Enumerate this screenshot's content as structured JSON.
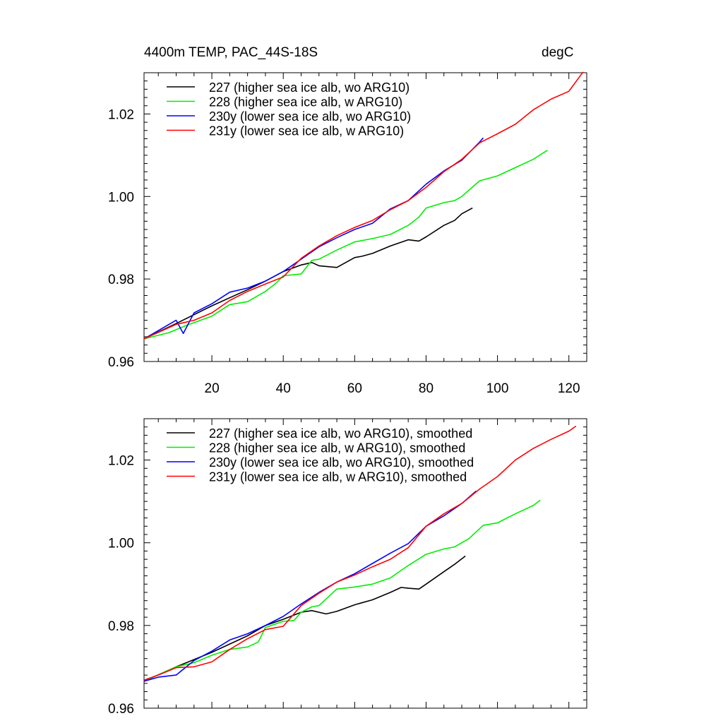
{
  "title_left": "4400m TEMP, PAC_44S-18S",
  "title_right": "degC",
  "chart_data": [
    {
      "type": "line",
      "title": "4400m TEMP, PAC_44S-18S",
      "units": "degC",
      "xlim": [
        1,
        125
      ],
      "ylim": [
        0.96,
        1.03
      ],
      "xticks": [
        20,
        40,
        60,
        80,
        100,
        120
      ],
      "xtick_labels": [
        "20",
        "40",
        "60",
        "80",
        "100",
        "120"
      ],
      "yticks": [
        0.96,
        0.98,
        1.0,
        1.02
      ],
      "ytick_labels": [
        "0.96",
        "0.98",
        "1.00",
        "1.02"
      ],
      "legend_position": "top-left",
      "series": [
        {
          "name": "227 (higher sea ice alb, wo ARG10)",
          "color": "#000000",
          "x": [
            1,
            10,
            20,
            30,
            35,
            40,
            45,
            48,
            50,
            55,
            60,
            62,
            65,
            70,
            75,
            78,
            80,
            85,
            88,
            90,
            93
          ],
          "y": [
            0.9655,
            0.9692,
            0.9735,
            0.9774,
            0.9795,
            0.9818,
            0.9834,
            0.984,
            0.9832,
            0.9828,
            0.9852,
            0.9855,
            0.9862,
            0.988,
            0.9895,
            0.9892,
            0.9902,
            0.993,
            0.9942,
            0.9958,
            0.9972
          ]
        },
        {
          "name": "228 (higher sea ice alb, w ARG10)",
          "color": "#00ee00",
          "x": [
            1,
            8,
            13,
            20,
            25,
            30,
            35,
            38,
            40,
            45,
            48,
            50,
            55,
            60,
            65,
            70,
            75,
            78,
            80,
            85,
            88,
            90,
            95,
            100,
            105,
            110,
            114
          ],
          "y": [
            0.9655,
            0.967,
            0.9688,
            0.971,
            0.9738,
            0.9745,
            0.977,
            0.979,
            0.9808,
            0.9812,
            0.9845,
            0.9848,
            0.987,
            0.989,
            0.9898,
            0.9908,
            0.993,
            0.995,
            0.9972,
            0.9985,
            0.999,
            1.0,
            1.0038,
            1.005,
            1.007,
            1.009,
            1.0112
          ]
        },
        {
          "name": "230y (lower sea ice alb, wo ARG10)",
          "color": "#0000ff",
          "x": [
            1,
            10,
            12,
            15,
            20,
            25,
            30,
            35,
            40,
            45,
            50,
            55,
            60,
            65,
            70,
            75,
            80,
            85,
            90,
            95,
            96
          ],
          "y": [
            0.9655,
            0.97,
            0.9668,
            0.9718,
            0.974,
            0.9768,
            0.9778,
            0.9795,
            0.9818,
            0.9848,
            0.9878,
            0.99,
            0.992,
            0.9935,
            0.997,
            0.999,
            1.003,
            1.0062,
            1.0088,
            1.0132,
            1.0142
          ]
        },
        {
          "name": "231y (lower sea ice alb, w ARG10)",
          "color": "#ff0000",
          "x": [
            1,
            10,
            15,
            20,
            25,
            30,
            35,
            40,
            45,
            50,
            55,
            60,
            65,
            70,
            75,
            80,
            85,
            90,
            95,
            100,
            105,
            110,
            115,
            120,
            124
          ],
          "y": [
            0.9655,
            0.969,
            0.97,
            0.9718,
            0.9748,
            0.977,
            0.9788,
            0.9805,
            0.985,
            0.988,
            0.9905,
            0.9925,
            0.9942,
            0.9968,
            0.999,
            1.0022,
            1.006,
            1.009,
            1.013,
            1.0152,
            1.0175,
            1.021,
            1.0236,
            1.0255,
            1.0302
          ]
        }
      ]
    },
    {
      "type": "line",
      "xlim": [
        1,
        125
      ],
      "ylim": [
        0.96,
        1.03
      ],
      "xticks": [
        20,
        40,
        60,
        80,
        100,
        120
      ],
      "yticks": [
        0.96,
        0.98,
        1.0,
        1.02
      ],
      "ytick_labels": [
        "0.96",
        "0.98",
        "1.00",
        "1.02"
      ],
      "legend_position": "top-left",
      "series": [
        {
          "name": "227 (higher sea ice alb, wo ARG10), smoothed",
          "color": "#000000",
          "x": [
            1,
            10,
            20,
            30,
            35,
            40,
            45,
            48,
            52,
            55,
            60,
            65,
            70,
            73,
            75,
            78,
            80,
            85,
            88,
            91
          ],
          "y": [
            0.9665,
            0.97,
            0.9735,
            0.9775,
            0.98,
            0.9815,
            0.9832,
            0.9836,
            0.9828,
            0.9834,
            0.985,
            0.9862,
            0.988,
            0.9892,
            0.989,
            0.9888,
            0.99,
            0.993,
            0.9948,
            0.9968
          ]
        },
        {
          "name": "228 (higher sea ice alb, w ARG10), smoothed",
          "color": "#00ee00",
          "x": [
            1,
            10,
            15,
            20,
            25,
            30,
            33,
            35,
            40,
            43,
            45,
            48,
            50,
            55,
            60,
            65,
            70,
            75,
            80,
            85,
            88,
            92,
            96,
            100,
            105,
            110,
            112
          ],
          "y": [
            0.9665,
            0.97,
            0.971,
            0.9728,
            0.9742,
            0.9748,
            0.976,
            0.9795,
            0.981,
            0.9812,
            0.9832,
            0.9845,
            0.9848,
            0.9888,
            0.9893,
            0.99,
            0.9915,
            0.9945,
            0.9972,
            0.9985,
            0.999,
            1.001,
            1.0042,
            1.0048,
            1.007,
            1.009,
            1.0103
          ]
        },
        {
          "name": "230y (lower sea ice alb, wo ARG10), smoothed",
          "color": "#0000ff",
          "x": [
            1,
            5,
            10,
            15,
            20,
            25,
            30,
            35,
            40,
            45,
            50,
            55,
            60,
            65,
            70,
            75,
            80,
            85,
            90,
            94
          ],
          "y": [
            0.9665,
            0.9675,
            0.968,
            0.9715,
            0.9738,
            0.9765,
            0.978,
            0.98,
            0.9822,
            0.9852,
            0.988,
            0.9905,
            0.9925,
            0.995,
            0.9975,
            0.9998,
            1.004,
            1.0065,
            1.0095,
            1.0125
          ]
        },
        {
          "name": "231y (lower sea ice alb, w ARG10), smoothed",
          "color": "#ff0000",
          "x": [
            1,
            5,
            10,
            15,
            20,
            25,
            30,
            35,
            40,
            45,
            50,
            55,
            60,
            65,
            70,
            75,
            80,
            85,
            90,
            95,
            100,
            105,
            110,
            115,
            120,
            122
          ],
          "y": [
            0.9668,
            0.968,
            0.9698,
            0.97,
            0.9712,
            0.9742,
            0.9768,
            0.979,
            0.9798,
            0.9848,
            0.9878,
            0.9905,
            0.9922,
            0.9942,
            0.996,
            0.9988,
            1.004,
            1.007,
            1.0095,
            1.013,
            1.016,
            1.02,
            1.0228,
            1.025,
            1.027,
            1.0282
          ]
        }
      ]
    }
  ]
}
